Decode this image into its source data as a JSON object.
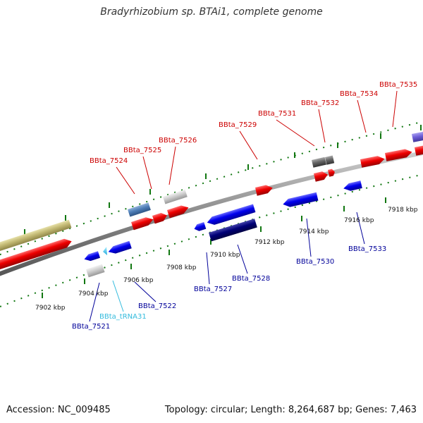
{
  "title": "Bradyrhizobium sp. BTAi1, complete genome",
  "footer": {
    "accession": "Accession: NC_009485",
    "summary": "Topology: circular; Length: 8,264,687 bp; Genes: 7,463"
  },
  "colors": {
    "forward_label": "#cc0000",
    "reverse_label": "#000099",
    "trna_label": "#33bbdd",
    "backbone": "#888888",
    "tick": "#117711"
  },
  "kbp_ticks": [
    {
      "label": "7902 kbp"
    },
    {
      "label": "7904 kbp"
    },
    {
      "label": "7906 kbp"
    },
    {
      "label": "7908 kbp"
    },
    {
      "label": "7910 kbp"
    },
    {
      "label": "7912 kbp"
    },
    {
      "label": "7914 kbp"
    },
    {
      "label": "7916 kbp"
    },
    {
      "label": "7918 kbp"
    }
  ],
  "gene_labels": [
    {
      "name": "BBta_7524",
      "strand": "forward"
    },
    {
      "name": "BBta_7525",
      "strand": "forward"
    },
    {
      "name": "BBta_7526",
      "strand": "forward"
    },
    {
      "name": "BBta_7529",
      "strand": "forward"
    },
    {
      "name": "BBta_7531",
      "strand": "forward"
    },
    {
      "name": "BBta_7532",
      "strand": "forward"
    },
    {
      "name": "BBta_7534",
      "strand": "forward"
    },
    {
      "name": "BBta_7535",
      "strand": "forward"
    },
    {
      "name": "BBta_7521",
      "strand": "reverse"
    },
    {
      "name": "BBta_tRNA31",
      "strand": "trna"
    },
    {
      "name": "BBta_7522",
      "strand": "reverse"
    },
    {
      "name": "BBta_7527",
      "strand": "reverse"
    },
    {
      "name": "BBta_7528",
      "strand": "reverse"
    },
    {
      "name": "BBta_7530",
      "strand": "reverse"
    },
    {
      "name": "BBta_7533",
      "strand": "reverse"
    }
  ]
}
